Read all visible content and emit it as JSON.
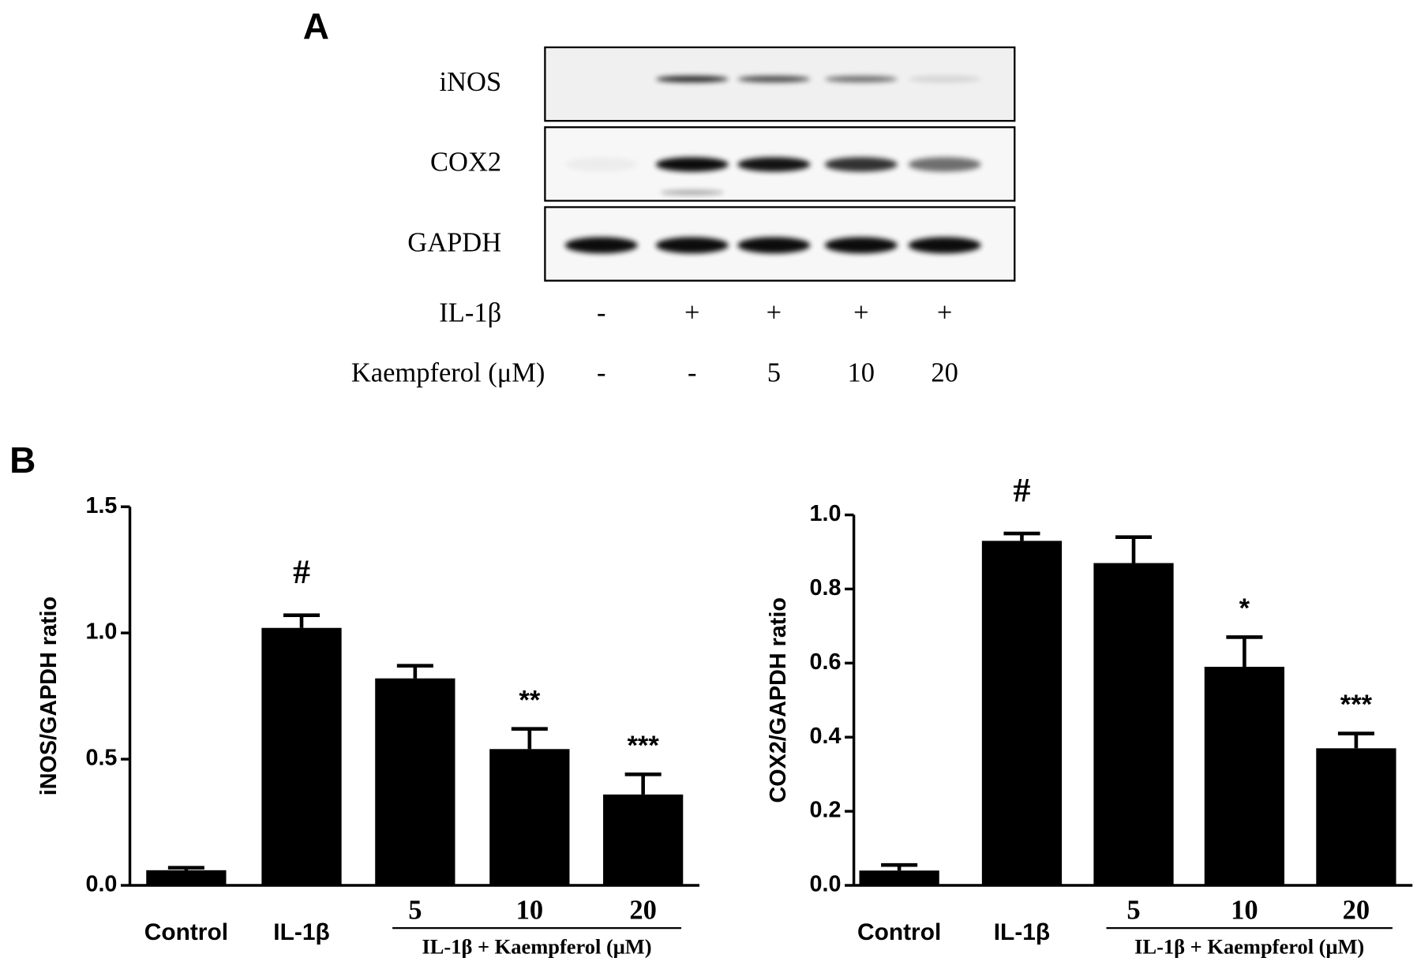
{
  "panel_a": {
    "label": "A",
    "blot_rows": [
      "iNOS",
      "COX2",
      "GAPDH"
    ],
    "treatments": [
      {
        "name": "IL-1β",
        "lanes": [
          "-",
          "+",
          "+",
          "+",
          "+"
        ]
      },
      {
        "name": "Kaempferol (μM)",
        "lanes": [
          "-",
          "-",
          "5",
          "10",
          "20"
        ]
      }
    ]
  },
  "panel_b": {
    "label": "B"
  },
  "chart_data": [
    {
      "type": "bar",
      "y_label": "iNOS/GAPDH ratio",
      "categories": [
        "Control",
        "IL-1β",
        "5",
        "10",
        "20"
      ],
      "group_label": "IL-1β + Kaempferol (μM)",
      "values": [
        0.06,
        1.02,
        0.82,
        0.54,
        0.36
      ],
      "errors": [
        0.01,
        0.05,
        0.05,
        0.08,
        0.08
      ],
      "annotations": [
        null,
        "#",
        null,
        "**",
        "***"
      ],
      "color": "#000000",
      "ylim": [
        0,
        1.5
      ],
      "yticks": [
        {
          "value": 0,
          "label": "0.0"
        },
        0.5,
        {
          "value": 1,
          "label": "1.0"
        },
        1.5
      ]
    },
    {
      "type": "bar",
      "y_label": "COX2/GAPDH ratio",
      "categories": [
        "Control",
        "IL-1β",
        "5",
        "10",
        "20"
      ],
      "group_label": "IL-1β + Kaempferol (μM)",
      "values": [
        0.04,
        0.93,
        0.87,
        0.59,
        0.37
      ],
      "errors": [
        0.015,
        0.02,
        0.07,
        0.08,
        0.04
      ],
      "annotations": [
        null,
        "#",
        null,
        "*",
        "***"
      ],
      "color": "#000000",
      "ylim": [
        0,
        1.0
      ],
      "yticks": [
        {
          "value": 0,
          "label": "0.0"
        },
        0.2,
        0.4,
        0.6,
        0.8,
        {
          "value": 1,
          "label": "1.0"
        }
      ]
    }
  ]
}
